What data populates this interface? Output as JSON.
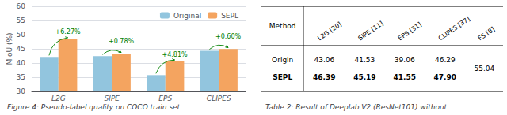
{
  "chart_data": [
    {
      "type": "bar",
      "title": "Figure 4: Pseudo-label quality on COCO train set.",
      "categories": [
        "L2G",
        "SIPE",
        "EPS",
        "CLIPES"
      ],
      "ylabel": "MIoU (%)",
      "series": [
        {
          "name": "Original",
          "color": "#92c5de",
          "values": [
            42.12,
            42.41,
            35.74,
            44.3
          ]
        },
        {
          "name": "SEPL",
          "color": "#f4a460",
          "values": [
            48.39,
            43.19,
            40.55,
            44.9
          ]
        }
      ],
      "annotations": [
        "+6.27%",
        "+0.78%",
        "+4.81%",
        "+0.60%"
      ],
      "ylim": [
        30,
        60
      ],
      "yticks": [
        30,
        35,
        40,
        45,
        50,
        55,
        60
      ],
      "grid": true,
      "legend": "upper right"
    },
    {
      "type": "table",
      "title": "Table 2: Result of Deeplab V2 (ResNet101) without",
      "xlabel": "Method",
      "categories": [
        "L2G [20]",
        "SIPE [11]",
        "EPS [31]",
        "CLIPES [37]",
        "FS [8]"
      ],
      "series": [
        {
          "name": "Origin",
          "values": [
            43.06,
            41.53,
            39.06,
            46.29,
            55.04
          ],
          "value_labels": [
            "43.06",
            "41.53",
            "39.06",
            "46.29",
            "55.04"
          ]
        },
        {
          "name": "SEPL",
          "values": [
            46.39,
            45.19,
            41.55,
            47.9,
            null
          ],
          "value_labels": [
            "46.39",
            "45.19",
            "41.55",
            "47.90",
            null
          ]
        }
      ]
    }
  ]
}
